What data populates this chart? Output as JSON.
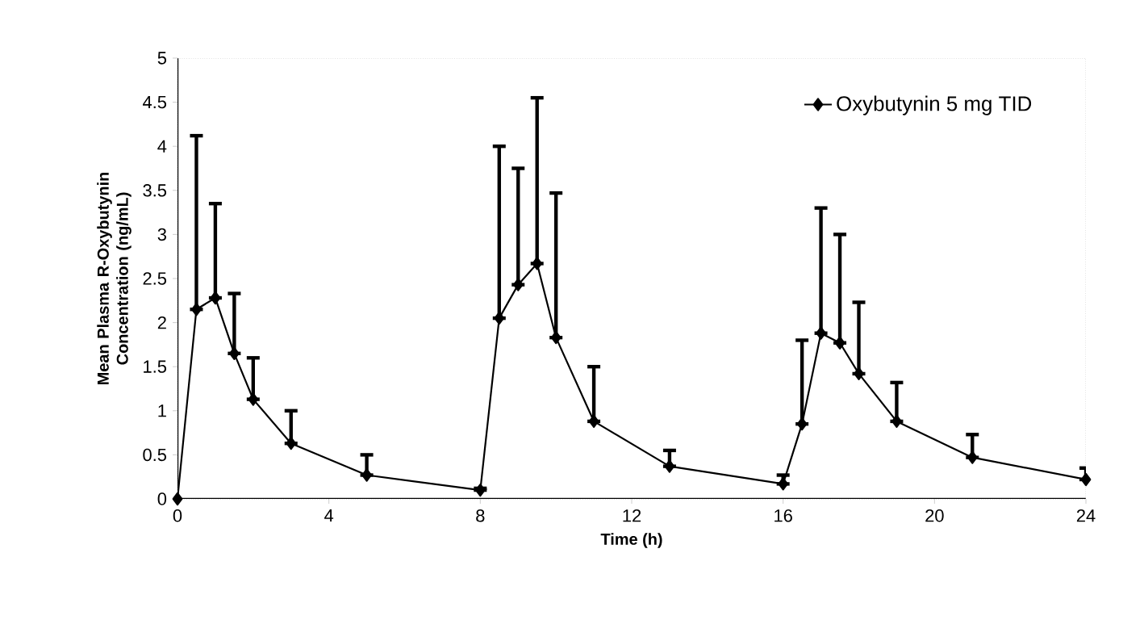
{
  "chart_data": {
    "type": "line",
    "xlabel": "Time (h)",
    "ylabel": "Mean Plasma R-Oxybutynin Concentration (ng/mL)",
    "x": [
      0,
      0.5,
      1,
      1.5,
      2,
      3,
      5,
      8,
      8.5,
      9,
      9.5,
      10,
      11,
      13,
      16,
      16.5,
      17,
      17.5,
      18,
      19,
      21,
      24
    ],
    "series": [
      {
        "name": "Oxybutynin 5 mg TID",
        "color": "#000000",
        "values": [
          0,
          2.15,
          2.28,
          1.65,
          1.13,
          0.63,
          0.27,
          0.1,
          2.05,
          2.43,
          2.67,
          1.83,
          0.88,
          0.37,
          0.17,
          0.85,
          1.88,
          1.77,
          1.42,
          0.88,
          0.47,
          0.22
        ],
        "errors": [
          null,
          [
            2.15,
            4.12
          ],
          [
            2.28,
            3.35
          ],
          [
            1.65,
            2.33
          ],
          [
            1.13,
            1.6
          ],
          [
            0.63,
            1.0
          ],
          [
            0.27,
            0.5
          ],
          [
            0.1,
            0.12
          ],
          [
            2.05,
            4.0
          ],
          [
            2.43,
            3.75
          ],
          [
            2.67,
            4.55
          ],
          [
            1.83,
            3.47
          ],
          [
            0.88,
            1.5
          ],
          [
            0.37,
            0.55
          ],
          [
            0.17,
            0.27
          ],
          [
            0.85,
            1.8
          ],
          [
            1.88,
            3.3
          ],
          [
            1.77,
            3.0
          ],
          [
            1.42,
            2.23
          ],
          [
            0.88,
            1.32
          ],
          [
            0.47,
            0.73
          ],
          [
            0.22,
            0.35
          ]
        ]
      }
    ],
    "xlim": [
      0,
      24
    ],
    "xticks": [
      0,
      4,
      8,
      12,
      16,
      20,
      24
    ],
    "ylim": [
      0,
      5
    ],
    "yticks": [
      0,
      0.5,
      1,
      1.5,
      2,
      2.5,
      3,
      3.5,
      4,
      4.5,
      5
    ],
    "marker": "diamond",
    "line_style": "solid",
    "legend": "top right",
    "grid": false
  }
}
